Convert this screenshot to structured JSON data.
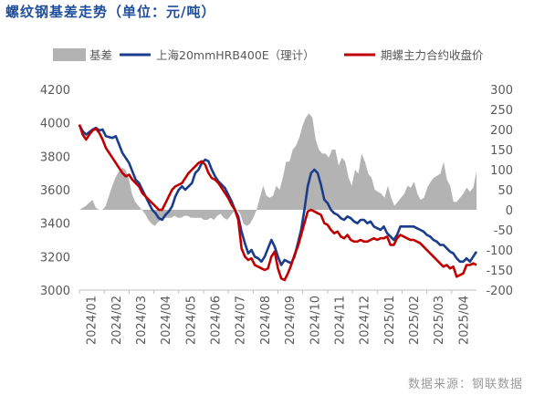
{
  "chart_data": {
    "type": "line",
    "title": "螺纹钢基差走势（单位：元/吨）",
    "source": "数据来源：钢联数据",
    "x_tick_labels": [
      "2024/01",
      "2024/02",
      "2024/03",
      "2024/04",
      "2024/05",
      "2024/06",
      "2024/07",
      "2024/08",
      "2024/09",
      "2024/10",
      "2024/11",
      "2024/12",
      "2025/01",
      "2025/02",
      "2025/03",
      "2025/04"
    ],
    "x_range": [
      "2024/01",
      "2025/04"
    ],
    "left_axis": {
      "min": 3000,
      "max": 4200,
      "ticks": [
        3000,
        3200,
        3400,
        3600,
        3800,
        4000,
        4200
      ]
    },
    "right_axis": {
      "min": -200,
      "max": 300,
      "ticks": [
        -200,
        -150,
        -100,
        -50,
        0,
        50,
        100,
        150,
        200,
        250,
        300
      ]
    },
    "grid": false,
    "legend_position": "top",
    "series": [
      {
        "name": "基差",
        "type": "area",
        "axis": "right",
        "color": "#b3b3b3",
        "values": [
          0,
          5,
          10,
          18,
          25,
          5,
          0,
          0,
          10,
          35,
          60,
          80,
          95,
          105,
          100,
          80,
          40,
          20,
          10,
          0,
          -10,
          -25,
          -35,
          -40,
          -30,
          -25,
          -20,
          -20,
          -20,
          -15,
          -20,
          -20,
          -15,
          -15,
          -20,
          -20,
          -20,
          -20,
          -25,
          -25,
          -20,
          -25,
          -15,
          -10,
          -20,
          -25,
          -15,
          -5,
          0,
          -10,
          -35,
          -40,
          -35,
          -20,
          0,
          30,
          60,
          35,
          30,
          35,
          60,
          50,
          80,
          120,
          120,
          150,
          160,
          180,
          210,
          230,
          240,
          230,
          175,
          150,
          140,
          140,
          130,
          150,
          150,
          110,
          130,
          120,
          80,
          60,
          100,
          90,
          140,
          120,
          90,
          80,
          50,
          45,
          40,
          30,
          60,
          30,
          10,
          20,
          30,
          40,
          60,
          55,
          70,
          40,
          25,
          30,
          55,
          70,
          80,
          85,
          90,
          120,
          75,
          60,
          20,
          20,
          30,
          40,
          55,
          45,
          55,
          95
        ]
      },
      {
        "name": "上海20mmHRB400E（理计）",
        "type": "line",
        "axis": "left",
        "color": "#1a3c8c",
        "values": [
          3985,
          3950,
          3930,
          3945,
          3960,
          3970,
          3955,
          3960,
          3920,
          3915,
          3910,
          3920,
          3870,
          3820,
          3790,
          3760,
          3710,
          3660,
          3640,
          3600,
          3560,
          3520,
          3480,
          3460,
          3430,
          3420,
          3450,
          3470,
          3500,
          3560,
          3600,
          3620,
          3600,
          3620,
          3640,
          3700,
          3720,
          3760,
          3780,
          3770,
          3720,
          3680,
          3650,
          3630,
          3610,
          3570,
          3530,
          3480,
          3440,
          3350,
          3280,
          3220,
          3240,
          3200,
          3190,
          3170,
          3200,
          3250,
          3300,
          3260,
          3200,
          3150,
          3180,
          3170,
          3160,
          3200,
          3280,
          3360,
          3480,
          3620,
          3700,
          3720,
          3700,
          3630,
          3540,
          3520,
          3480,
          3460,
          3450,
          3430,
          3420,
          3440,
          3430,
          3410,
          3400,
          3420,
          3420,
          3400,
          3410,
          3380,
          3370,
          3360,
          3380,
          3340,
          3320,
          3300,
          3330,
          3380,
          3380,
          3380,
          3380,
          3380,
          3370,
          3360,
          3350,
          3330,
          3320,
          3300,
          3290,
          3270,
          3270,
          3250,
          3230,
          3220,
          3190,
          3170,
          3170,
          3190,
          3170,
          3200,
          3230
        ]
      },
      {
        "name": "期螺主力合约收盘价",
        "type": "line",
        "axis": "left",
        "color": "#c00000",
        "values": [
          3990,
          3930,
          3900,
          3930,
          3955,
          3965,
          3940,
          3900,
          3850,
          3820,
          3790,
          3760,
          3730,
          3700,
          3680,
          3690,
          3660,
          3640,
          3620,
          3580,
          3560,
          3540,
          3520,
          3500,
          3480,
          3480,
          3520,
          3560,
          3600,
          3620,
          3630,
          3640,
          3670,
          3700,
          3720,
          3740,
          3760,
          3770,
          3750,
          3700,
          3670,
          3660,
          3640,
          3610,
          3580,
          3550,
          3510,
          3480,
          3420,
          3250,
          3200,
          3180,
          3190,
          3150,
          3140,
          3130,
          3120,
          3130,
          3200,
          3230,
          3130,
          3070,
          3060,
          3100,
          3150,
          3210,
          3260,
          3330,
          3400,
          3470,
          3480,
          3470,
          3460,
          3450,
          3400,
          3390,
          3360,
          3340,
          3350,
          3320,
          3310,
          3330,
          3300,
          3290,
          3290,
          3300,
          3290,
          3290,
          3300,
          3310,
          3300,
          3310,
          3310,
          3320,
          3270,
          3270,
          3310,
          3330,
          3320,
          3310,
          3300,
          3300,
          3290,
          3280,
          3260,
          3240,
          3220,
          3200,
          3180,
          3160,
          3140,
          3150,
          3130,
          3140,
          3080,
          3090,
          3100,
          3150,
          3150,
          3160,
          3150
        ]
      }
    ]
  }
}
